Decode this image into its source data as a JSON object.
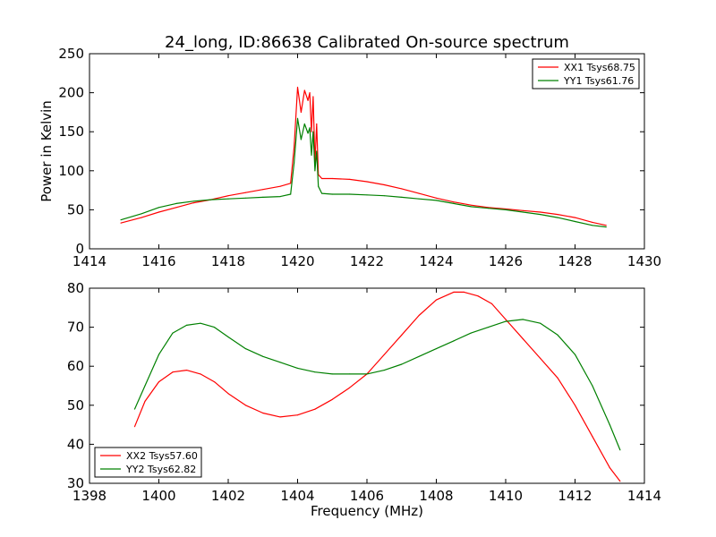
{
  "chart_data": [
    {
      "type": "line",
      "title": "24_long, ID:86638 Calibrated On-source spectrum",
      "xlabel": "",
      "ylabel": "Power in Kelvin",
      "xlim": [
        1414,
        1430
      ],
      "ylim": [
        0,
        250
      ],
      "xticks": [
        "1414",
        "1416",
        "1418",
        "1420",
        "1422",
        "1424",
        "1426",
        "1428",
        "1430"
      ],
      "yticks": [
        "0",
        "50",
        "100",
        "150",
        "200",
        "250"
      ],
      "grid": false,
      "legend_position": "top-right",
      "series": [
        {
          "name": "XX1 Tsys68.75",
          "color": "#ff0000",
          "x": [
            1414.9,
            1415.5,
            1416,
            1416.5,
            1417,
            1417.5,
            1418,
            1418.5,
            1419,
            1419.5,
            1419.8,
            1419.9,
            1420.0,
            1420.1,
            1420.2,
            1420.3,
            1420.35,
            1420.4,
            1420.45,
            1420.5,
            1420.55,
            1420.6,
            1420.7,
            1421,
            1421.5,
            1422,
            1422.5,
            1423,
            1423.5,
            1424,
            1424.5,
            1425,
            1425.5,
            1426,
            1426.5,
            1427,
            1427.5,
            1428,
            1428.5,
            1428.9
          ],
          "y": [
            33,
            40,
            47,
            53,
            59,
            63,
            68,
            72,
            76,
            80,
            84,
            130,
            207,
            175,
            203,
            190,
            200,
            150,
            195,
            110,
            160,
            95,
            90,
            90,
            89,
            86,
            82,
            77,
            71,
            65,
            60,
            56,
            53,
            51,
            49,
            47,
            44,
            40,
            34,
            30
          ]
        },
        {
          "name": "YY1 Tsys61.76",
          "color": "#008000",
          "x": [
            1414.9,
            1415.5,
            1416,
            1416.5,
            1417,
            1417.5,
            1418,
            1418.5,
            1419,
            1419.5,
            1419.8,
            1419.9,
            1420.0,
            1420.1,
            1420.2,
            1420.3,
            1420.35,
            1420.4,
            1420.45,
            1420.5,
            1420.55,
            1420.6,
            1420.7,
            1421,
            1421.5,
            1422,
            1422.5,
            1423,
            1423.5,
            1424,
            1424.5,
            1425,
            1425.5,
            1426,
            1426.5,
            1427,
            1427.5,
            1428,
            1428.5,
            1428.9
          ],
          "y": [
            37,
            45,
            53,
            58,
            61,
            63,
            64,
            65,
            66,
            67,
            70,
            110,
            167,
            140,
            160,
            148,
            155,
            120,
            150,
            100,
            125,
            80,
            71,
            70,
            70,
            69,
            68,
            66,
            64,
            62,
            58,
            54,
            52,
            50,
            47,
            44,
            40,
            35,
            30,
            28
          ]
        }
      ]
    },
    {
      "type": "line",
      "title": "",
      "xlabel": "Frequency (MHz)",
      "ylabel": "",
      "xlim": [
        1398,
        1414
      ],
      "ylim": [
        30,
        80
      ],
      "xticks": [
        "1398",
        "1400",
        "1402",
        "1404",
        "1406",
        "1408",
        "1410",
        "1412",
        "1414"
      ],
      "yticks": [
        "30",
        "40",
        "50",
        "60",
        "70",
        "80"
      ],
      "grid": false,
      "legend_position": "bottom-left",
      "series": [
        {
          "name": "XX2 Tsys57.60",
          "color": "#ff0000",
          "x": [
            1399.3,
            1399.6,
            1400,
            1400.4,
            1400.8,
            1401.2,
            1401.6,
            1402,
            1402.5,
            1403,
            1403.5,
            1404,
            1404.5,
            1405,
            1405.5,
            1406,
            1406.5,
            1407,
            1407.5,
            1408,
            1408.5,
            1408.8,
            1409.2,
            1409.6,
            1410,
            1410.5,
            1411,
            1411.5,
            1412,
            1412.5,
            1413,
            1413.3
          ],
          "y": [
            44.5,
            51,
            56,
            58.5,
            59,
            58,
            56,
            53,
            50,
            48,
            47,
            47.5,
            49,
            51.5,
            54.5,
            58,
            63,
            68,
            73,
            77,
            79,
            79,
            78,
            76,
            72,
            67,
            62,
            57,
            50,
            42,
            34,
            30.5
          ]
        },
        {
          "name": "YY2 Tsys62.82",
          "color": "#008000",
          "x": [
            1399.3,
            1399.6,
            1400,
            1400.4,
            1400.8,
            1401.2,
            1401.6,
            1402,
            1402.5,
            1403,
            1403.5,
            1404,
            1404.5,
            1405,
            1405.5,
            1406,
            1406.5,
            1407,
            1407.5,
            1408,
            1408.5,
            1409,
            1409.5,
            1410,
            1410.5,
            1411,
            1411.5,
            1412,
            1412.5,
            1413,
            1413.3
          ],
          "y": [
            49,
            55,
            63,
            68.5,
            70.5,
            71,
            70,
            67.5,
            64.5,
            62.5,
            61,
            59.5,
            58.5,
            58,
            58,
            58,
            59,
            60.5,
            62.5,
            64.5,
            66.5,
            68.5,
            70,
            71.5,
            72,
            71,
            68,
            63,
            55,
            45,
            38.5
          ]
        }
      ]
    }
  ]
}
